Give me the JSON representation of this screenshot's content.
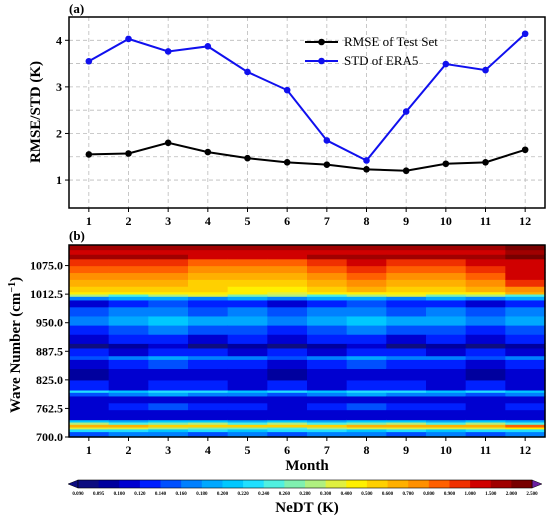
{
  "chart_data": [
    {
      "panel": "(a)",
      "type": "line",
      "xlabel": "",
      "ylabel": "RMSE/STD (K)",
      "x": [
        1,
        2,
        3,
        4,
        5,
        6,
        7,
        8,
        9,
        10,
        11,
        12
      ],
      "xlim": [
        0.5,
        12.5
      ],
      "ylim": [
        0.4,
        4.5
      ],
      "yticks": [
        1,
        2,
        3,
        4
      ],
      "grid": true,
      "legend_position": "top-right",
      "series": [
        {
          "name": "RMSE of Test Set",
          "color": "#000000",
          "values": [
            1.55,
            1.57,
            1.8,
            1.6,
            1.47,
            1.38,
            1.33,
            1.23,
            1.2,
            1.35,
            1.38,
            1.65
          ]
        },
        {
          "name": "STD of ERA5",
          "color": "#1010ee",
          "values": [
            3.55,
            4.03,
            3.76,
            3.87,
            3.32,
            2.93,
            1.85,
            1.42,
            2.47,
            3.49,
            3.36,
            4.14
          ]
        }
      ]
    },
    {
      "panel": "(b)",
      "type": "heatmap",
      "xlabel": "Month",
      "ylabel": "Wave Number (cm⁻¹)",
      "ylabel_base": "Wave Number (cm",
      "ylabel_sup": "−1",
      "ylabel_close": ")",
      "x": [
        1,
        2,
        3,
        4,
        5,
        6,
        7,
        8,
        9,
        10,
        11,
        12
      ],
      "yticks": [
        700.0,
        762.5,
        825.0,
        887.5,
        950.0,
        1012.5,
        1075.0
      ],
      "ylim": [
        700,
        1120
      ],
      "colorbar": {
        "label": "NeDT (K)",
        "levels": [
          0.09,
          0.095,
          0.1,
          0.12,
          0.14,
          0.16,
          0.18,
          0.2,
          0.22,
          0.24,
          0.26,
          0.28,
          0.3,
          0.4,
          0.5,
          0.6,
          0.7,
          0.8,
          0.9,
          1.0,
          1.5,
          2.0,
          2.5
        ],
        "tick_labels": [
          "0.090",
          "0.095",
          "0.100",
          "0.120",
          "0.140",
          "0.160",
          "0.180",
          "0.200",
          "0.220",
          "0.240",
          "0.260",
          "0.280",
          "0.300",
          "0.400",
          "0.500",
          "0.600",
          "0.700",
          "0.800",
          "0.900",
          "1.000",
          "1.500",
          "2.000",
          "2.500"
        ],
        "colors": [
          "#0d0d80",
          "#00009e",
          "#0000d0",
          "#0020ff",
          "#0050ff",
          "#0080ff",
          "#00a8ff",
          "#00c8ff",
          "#20e0ff",
          "#50f0e0",
          "#80f0b0",
          "#b0f080",
          "#e0f040",
          "#fff000",
          "#ffd000",
          "#ffb000",
          "#ff9000",
          "#ff6000",
          "#f03000",
          "#d00000",
          "#a00000",
          "#780000"
        ]
      },
      "bands": [
        {
          "y0": 700,
          "y1": 712,
          "v": 0.16
        },
        {
          "y0": 712,
          "y1": 718,
          "v": 0.22
        },
        {
          "y0": 718,
          "y1": 722,
          "v": 0.3
        },
        {
          "y0": 722,
          "y1": 728,
          "v": 0.6
        },
        {
          "y0": 728,
          "y1": 733,
          "v": 0.27
        },
        {
          "y0": 733,
          "y1": 738,
          "v": 0.2
        },
        {
          "y0": 738,
          "y1": 760,
          "v": 0.11
        },
        {
          "y0": 760,
          "y1": 775,
          "v": 0.13
        },
        {
          "y0": 775,
          "y1": 790,
          "v": 0.11
        },
        {
          "y0": 790,
          "y1": 798,
          "v": 0.17
        },
        {
          "y0": 798,
          "y1": 803,
          "v": 0.22
        },
        {
          "y0": 803,
          "y1": 825,
          "v": 0.12
        },
        {
          "y0": 825,
          "y1": 850,
          "v": 0.105
        },
        {
          "y0": 850,
          "y1": 870,
          "v": 0.13
        },
        {
          "y0": 870,
          "y1": 878,
          "v": 0.17
        },
        {
          "y0": 878,
          "y1": 895,
          "v": 0.12
        },
        {
          "y0": 895,
          "y1": 905,
          "v": 0.095
        },
        {
          "y0": 905,
          "y1": 925,
          "v": 0.12
        },
        {
          "y0": 925,
          "y1": 945,
          "v": 0.15
        },
        {
          "y0": 945,
          "y1": 965,
          "v": 0.19
        },
        {
          "y0": 965,
          "y1": 985,
          "v": 0.16
        },
        {
          "y0": 985,
          "y1": 1000,
          "v": 0.13
        },
        {
          "y0": 1000,
          "y1": 1008,
          "v": 0.18
        },
        {
          "y0": 1008,
          "y1": 1013,
          "v": 0.28
        },
        {
          "y0": 1013,
          "y1": 1018,
          "v": 0.45
        },
        {
          "y0": 1018,
          "y1": 1030,
          "v": 0.55
        },
        {
          "y0": 1030,
          "y1": 1045,
          "v": 0.65
        },
        {
          "y0": 1045,
          "y1": 1060,
          "v": 0.75
        },
        {
          "y0": 1060,
          "y1": 1075,
          "v": 0.85
        },
        {
          "y0": 1075,
          "y1": 1090,
          "v": 0.95
        },
        {
          "y0": 1090,
          "y1": 1100,
          "v": 1.6
        },
        {
          "y0": 1100,
          "y1": 1110,
          "v": 1.2
        },
        {
          "y0": 1110,
          "y1": 1120,
          "v": 1.8
        }
      ],
      "month_factor": [
        1.05,
        1.0,
        0.95,
        0.92,
        0.9,
        0.85,
        0.95,
        1.1,
        1.0,
        1.05,
        1.1,
        1.4
      ]
    }
  ]
}
